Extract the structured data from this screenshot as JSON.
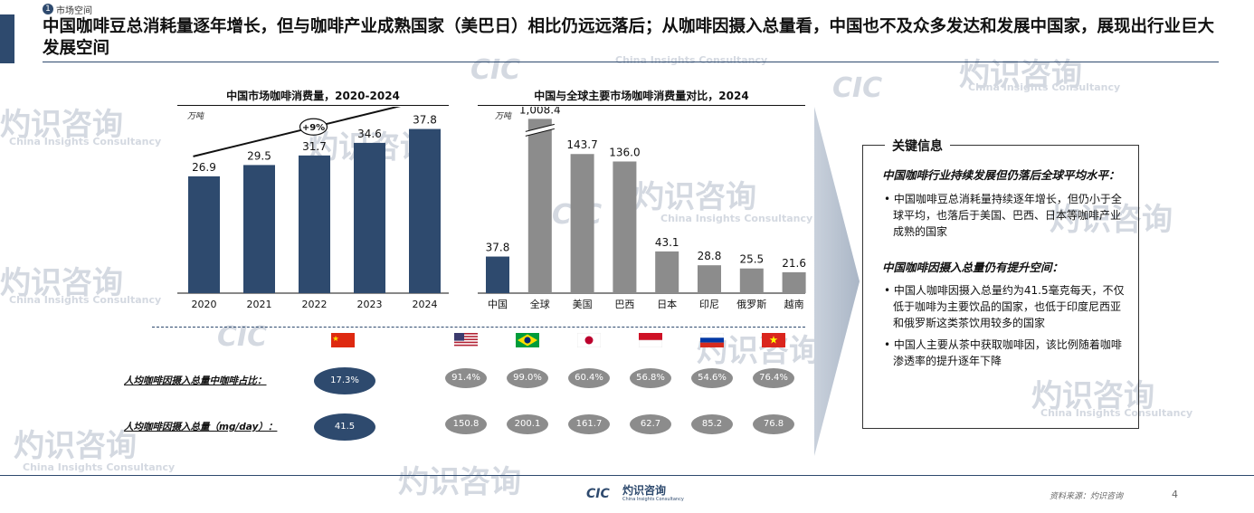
{
  "section": {
    "number": "1",
    "label": "市场空间"
  },
  "headline": "中国咖啡豆总消耗量逐年增长，但与咖啡产业成熟国家（美巴日）相比仍远远落后；从咖啡因摄入总量看，中国也不及众多发达和发展中国家，展现出行业巨大发展空间",
  "watermark": {
    "brand": "灼识咨询",
    "logo": "CIC",
    "en": "China Insights Consultancy"
  },
  "colors": {
    "navy": "#2e4a6e",
    "grey": "#8c8c8c"
  },
  "chart_data": [
    {
      "type": "bar",
      "title": "中国市场咖啡消费量，2020-2024",
      "unit": "万吨",
      "categories": [
        "2020",
        "2021",
        "2022",
        "2023",
        "2024"
      ],
      "values": [
        26.9,
        29.5,
        31.7,
        34.6,
        37.8
      ],
      "value_labels": [
        "26.9",
        "29.5",
        "31.7",
        "34.6",
        "37.8"
      ],
      "ylim": [
        0,
        50
      ],
      "cagr_label": "+9%",
      "color": "#2e4a6e"
    },
    {
      "type": "bar",
      "title": "中国与全球主要市场咖啡消费量对比，2024",
      "unit": "万吨",
      "categories": [
        "中国",
        "全球",
        "美国",
        "巴西",
        "日本",
        "印尼",
        "俄罗斯",
        "越南"
      ],
      "values": [
        37.8,
        1008.4,
        143.7,
        136.0,
        43.1,
        28.8,
        25.5,
        21.6
      ],
      "value_labels": [
        "37.8",
        "1,008.4",
        "143.7",
        "136.0",
        "43.1",
        "28.8",
        "25.5",
        "21.6"
      ],
      "broken_axis_category": "全球",
      "colors": [
        "#2e4a6e",
        "#8c8c8c",
        "#8c8c8c",
        "#8c8c8c",
        "#8c8c8c",
        "#8c8c8c",
        "#8c8c8c",
        "#8c8c8c"
      ]
    }
  ],
  "comparison": {
    "flags": [
      "flag-china",
      "flag-usa",
      "flag-brazil",
      "flag-japan",
      "flag-indonesia",
      "flag-russia",
      "flag-vietnam"
    ],
    "row1": {
      "label": "人均咖啡因摄入总量中咖啡占比：",
      "china": "17.3%",
      "others": [
        "91.4%",
        "99.0%",
        "60.4%",
        "56.8%",
        "54.6%",
        "76.4%"
      ]
    },
    "row2": {
      "label": "人均咖啡因摄入总量（mg/day）：",
      "china": "41.5",
      "others": [
        "150.8",
        "200.1",
        "161.7",
        "62.7",
        "85.2",
        "76.8"
      ]
    }
  },
  "key_info": {
    "title": "关键信息",
    "h1": "中国咖啡行业持续发展但仍落后全球平均水平：",
    "b1": "• 中国咖啡豆总消耗量持续逐年增长，但仍小于全球平均，也落后于美国、巴西、日本等咖啡产业成熟的国家",
    "h2": "中国咖啡因摄入总量仍有提升空间：",
    "b2": "• 中国人咖啡因摄入总量约为41.5毫克每天，不仅低于咖啡为主要饮品的国家，也低于印度尼西亚和俄罗斯这类茶饮用较多的国家",
    "b3": "• 中国人主要从茶中获取咖啡因，该比例随着咖啡渗透率的提升逐年下降"
  },
  "footer": {
    "source": "资料来源：灼识咨询",
    "page": "4",
    "logo_cn": "灼识咨询",
    "logo_en": "China Insights Consultancy",
    "logo_mark": "CIC"
  }
}
